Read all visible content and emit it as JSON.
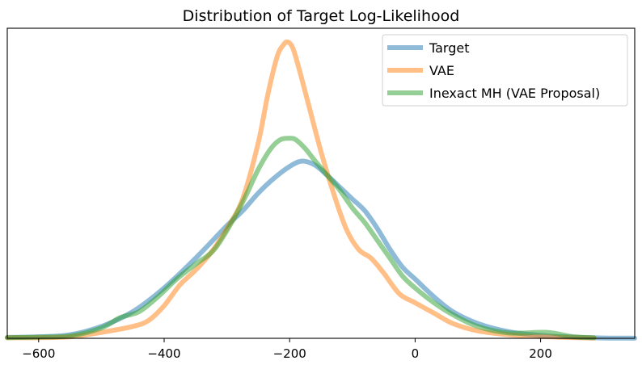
{
  "chart_data": {
    "type": "line",
    "title": "Distribution of Target Log-Likelihood",
    "xlabel": "",
    "ylabel": "",
    "xlim": [
      -650,
      350
    ],
    "ylim": [
      0,
      1.0
    ],
    "x_ticks": [
      -600,
      -400,
      -200,
      0,
      200
    ],
    "x_tick_labels": [
      "−600",
      "−400",
      "−200",
      "0",
      "200"
    ],
    "y_ticks_visible": false,
    "grid": false,
    "legend_position": "top-right",
    "series": [
      {
        "name": "Target",
        "color": "#1f77b4",
        "x": [
          -650,
          -600,
          -550,
          -500,
          -450,
          -400,
          -350,
          -300,
          -275,
          -250,
          -225,
          -200,
          -180,
          -160,
          -140,
          -120,
          -100,
          -80,
          -60,
          -40,
          -20,
          0,
          30,
          60,
          100,
          150,
          200,
          250,
          300,
          350
        ],
        "y": [
          0.003,
          0.005,
          0.012,
          0.04,
          0.09,
          0.17,
          0.27,
          0.38,
          0.43,
          0.49,
          0.54,
          0.58,
          0.598,
          0.585,
          0.55,
          0.51,
          0.47,
          0.43,
          0.37,
          0.3,
          0.24,
          0.2,
          0.14,
          0.09,
          0.05,
          0.022,
          0.01,
          0.004,
          0.001,
          0.0005
        ]
      },
      {
        "name": "VAE",
        "color": "#ff7f0e",
        "x": [
          -650,
          -600,
          -550,
          -500,
          -450,
          -425,
          -400,
          -375,
          -350,
          -325,
          -300,
          -275,
          -250,
          -235,
          -220,
          -210,
          -203,
          -195,
          -185,
          -170,
          -150,
          -130,
          -110,
          -90,
          -70,
          -50,
          -25,
          0,
          30,
          60,
          100,
          150,
          200,
          240,
          285
        ],
        "y": [
          0.002,
          0.002,
          0.005,
          0.02,
          0.04,
          0.06,
          0.11,
          0.18,
          0.23,
          0.29,
          0.37,
          0.47,
          0.66,
          0.82,
          0.95,
          0.99,
          1.0,
          0.98,
          0.91,
          0.79,
          0.63,
          0.49,
          0.37,
          0.3,
          0.27,
          0.22,
          0.15,
          0.12,
          0.085,
          0.05,
          0.025,
          0.012,
          0.006,
          0.003,
          0.001
        ]
      },
      {
        "name": "Inexact MH (VAE Proposal)",
        "color": "#2ca02c",
        "x": [
          -650,
          -600,
          -550,
          -500,
          -470,
          -440,
          -410,
          -380,
          -350,
          -320,
          -290,
          -270,
          -250,
          -230,
          -215,
          -200,
          -190,
          -175,
          -160,
          -140,
          -120,
          -100,
          -80,
          -60,
          -40,
          -20,
          0,
          30,
          60,
          100,
          150,
          210,
          250,
          285
        ],
        "y": [
          0.002,
          0.004,
          0.008,
          0.035,
          0.07,
          0.09,
          0.14,
          0.2,
          0.25,
          0.3,
          0.4,
          0.48,
          0.57,
          0.64,
          0.67,
          0.675,
          0.67,
          0.64,
          0.6,
          0.55,
          0.5,
          0.44,
          0.39,
          0.33,
          0.27,
          0.21,
          0.17,
          0.12,
          0.08,
          0.04,
          0.018,
          0.02,
          0.006,
          0.002
        ]
      }
    ]
  }
}
